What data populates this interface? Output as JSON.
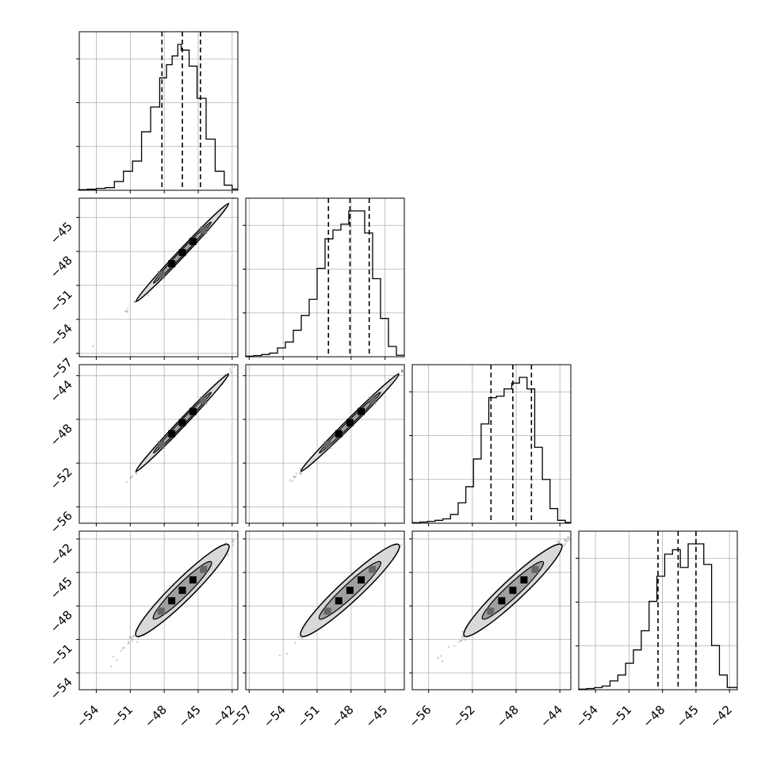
{
  "chart_data": {
    "type": "corner",
    "n_params": 4,
    "params": [
      {
        "range": [
          -55.5,
          -41.5
        ],
        "ticks": [
          {
            "value": -54,
            "label": "−54"
          },
          {
            "value": -51,
            "label": "−51"
          },
          {
            "value": -48,
            "label": "−48"
          },
          {
            "value": -45,
            "label": "−45"
          },
          {
            "value": -42,
            "label": "−42"
          }
        ],
        "quantiles": [
          -48.2,
          -46.4,
          -44.8
        ],
        "hist_bins": [
          -55.6,
          -54.8,
          -54.0,
          -53.2,
          -52.4,
          -51.6,
          -50.8,
          -50.0,
          -49.2,
          -48.4,
          -47.8,
          -47.3,
          -46.8,
          -46.5,
          -45.8,
          -45.1,
          -44.3,
          -43.5,
          -42.7,
          -42.0,
          -41.5
        ],
        "hist_counts": [
          0.004,
          0.007,
          0.013,
          0.018,
          0.06,
          0.13,
          0.2,
          0.4,
          0.57,
          0.77,
          0.86,
          0.92,
          0.999,
          0.96,
          0.85,
          0.63,
          0.35,
          0.13,
          0.035,
          0.008
        ]
      },
      {
        "range": [
          -57.3,
          -43.3
        ],
        "ticks": [
          {
            "value": -57,
            "label": "−57"
          },
          {
            "value": -54,
            "label": "−54"
          },
          {
            "value": -51,
            "label": "−51"
          },
          {
            "value": -48,
            "label": "−48"
          },
          {
            "value": -45,
            "label": "−45"
          }
        ],
        "quantiles": [
          -50.0,
          -48.1,
          -46.4
        ],
        "hist_bins": [
          -57.3,
          -56.6,
          -55.9,
          -55.2,
          -54.5,
          -53.8,
          -53.1,
          -52.4,
          -51.7,
          -51.0,
          -50.3,
          -49.6,
          -48.9,
          -48.2,
          -47.5,
          -46.8,
          -46.1,
          -45.4,
          -44.7,
          -44.0,
          -43.3
        ],
        "hist_counts": [
          0.004,
          0.008,
          0.015,
          0.025,
          0.06,
          0.1,
          0.18,
          0.28,
          0.39,
          0.6,
          0.8,
          0.86,
          0.9,
          0.99,
          0.99,
          0.84,
          0.53,
          0.26,
          0.07,
          0.01
        ]
      },
      {
        "range": [
          -57.5,
          -43.0
        ],
        "ticks": [
          {
            "value": -56,
            "label": "−56"
          },
          {
            "value": -52,
            "label": "−52"
          },
          {
            "value": -48,
            "label": "−48"
          },
          {
            "value": -44,
            "label": "−44"
          }
        ],
        "quantiles": [
          -50.3,
          -48.3,
          -46.6
        ],
        "hist_bins": [
          -57.5,
          -56.8,
          -56.1,
          -55.4,
          -54.7,
          -54.0,
          -53.3,
          -52.6,
          -51.9,
          -51.2,
          -50.5,
          -49.8,
          -49.1,
          -48.4,
          -47.7,
          -47.0,
          -46.3,
          -45.6,
          -44.9,
          -44.2,
          -43.5,
          -43.0
        ],
        "hist_counts": [
          0.004,
          0.008,
          0.013,
          0.02,
          0.03,
          0.06,
          0.14,
          0.25,
          0.44,
          0.68,
          0.86,
          0.87,
          0.92,
          0.96,
          0.999,
          0.92,
          0.52,
          0.3,
          0.1,
          0.02,
          0.005
        ]
      },
      {
        "range": [
          -55.5,
          -41.3
        ],
        "ticks": [
          {
            "value": -54,
            "label": "−54"
          },
          {
            "value": -51,
            "label": "−51"
          },
          {
            "value": -48,
            "label": "−48"
          },
          {
            "value": -45,
            "label": "−45"
          },
          {
            "value": -42,
            "label": "−42"
          }
        ],
        "quantiles": [
          -48.4,
          -46.6,
          -45.0
        ],
        "hist_bins": [
          -55.5,
          -54.8,
          -54.1,
          -53.4,
          -52.7,
          -52.0,
          -51.3,
          -50.6,
          -49.9,
          -49.2,
          -48.5,
          -47.8,
          -47.1,
          -46.4,
          -45.7,
          -45.0,
          -44.3,
          -43.6,
          -42.9,
          -42.2,
          -41.3
        ],
        "hist_counts": [
          0.004,
          0.008,
          0.014,
          0.025,
          0.06,
          0.1,
          0.18,
          0.27,
          0.4,
          0.6,
          0.77,
          0.92,
          0.95,
          0.83,
          0.99,
          0.99,
          0.85,
          0.3,
          0.1,
          0.015
        ]
      }
    ],
    "show_grid": true,
    "quantile_line_style": "dashed"
  }
}
